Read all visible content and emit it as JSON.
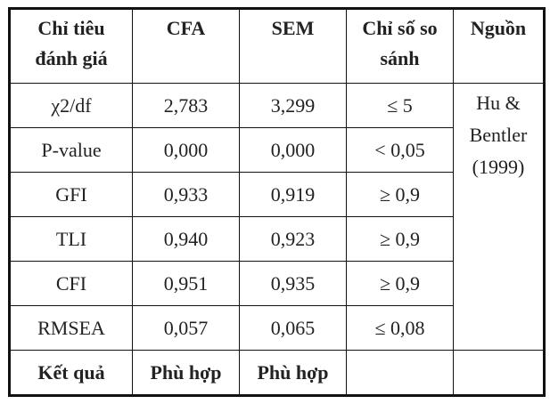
{
  "table": {
    "header": [
      "Chỉ tiêu đánh giá",
      "CFA",
      "SEM",
      "Chỉ số so sánh",
      "Nguồn"
    ],
    "rows": [
      [
        "χ2/df",
        "2,783",
        "3,299",
        "≤ 5"
      ],
      [
        "P-value",
        "0,000",
        "0,000",
        "< 0,05"
      ],
      [
        "GFI",
        "0,933",
        "0,919",
        "≥ 0,9"
      ],
      [
        "TLI",
        "0,940",
        "0,923",
        "≥ 0,9"
      ],
      [
        "CFI",
        "0,951",
        "0,935",
        "≥ 0,9"
      ],
      [
        "RMSEA",
        "0,057",
        "0,065",
        "≤ 0,08"
      ]
    ],
    "source": "Hu & Bentler (1999)",
    "result": [
      "Kết quả",
      "Phù hợp",
      "Phù hợp"
    ]
  }
}
